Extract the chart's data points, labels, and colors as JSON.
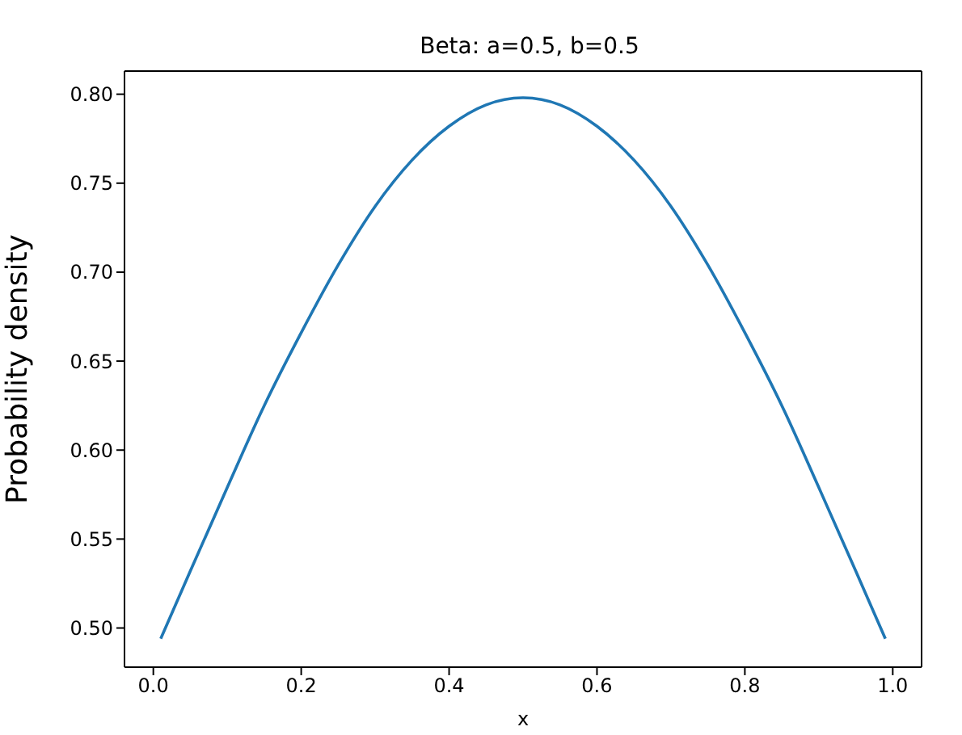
{
  "chart_data": {
    "type": "line",
    "title": "Beta: a=0.5, b=0.5",
    "xlabel": "x",
    "ylabel": "Probability density",
    "x": [
      0.01,
      0.05,
      0.1,
      0.15,
      0.2,
      0.25,
      0.3,
      0.35,
      0.4,
      0.45,
      0.5,
      0.55,
      0.6,
      0.65,
      0.7,
      0.75,
      0.8,
      0.85,
      0.9,
      0.95,
      0.99
    ],
    "series": [
      {
        "color": "#1f77b4",
        "values": [
          0.494,
          0.532,
          0.579,
          0.625,
          0.666,
          0.704,
          0.737,
          0.763,
          0.782,
          0.794,
          0.798,
          0.794,
          0.782,
          0.763,
          0.737,
          0.704,
          0.666,
          0.625,
          0.579,
          0.532,
          0.494
        ]
      }
    ],
    "xlim": [
      -0.039,
      1.039
    ],
    "xticks": [
      {
        "value": 0,
        "label": "0.0"
      },
      0.2,
      0.4,
      0.6,
      0.8,
      {
        "value": 1,
        "label": "1.0"
      }
    ],
    "ylim": [
      0.478,
      0.813
    ],
    "yticks": [
      {
        "value": 0.5,
        "label": "0.50"
      },
      0.55,
      {
        "value": 0.6,
        "label": "0.60"
      },
      0.65,
      {
        "value": 0.7,
        "label": "0.70"
      },
      0.75,
      {
        "value": 0.8,
        "label": "0.80"
      }
    ],
    "grid": false,
    "legend": false,
    "marker": "none",
    "line_style": "solid"
  }
}
